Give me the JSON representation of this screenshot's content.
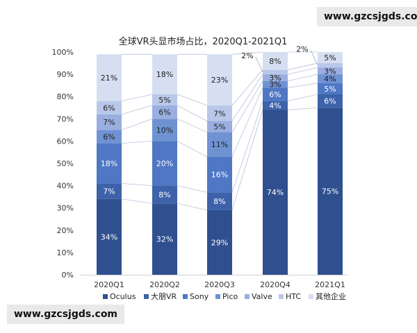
{
  "watermarks": {
    "top": "www.gzcsjgds.com",
    "bottom": "www.gzcsjgds.com"
  },
  "chart_data": {
    "type": "bar",
    "stacked": true,
    "title": "全球VR头显市场占比，2020Q1-2021Q1",
    "categories": [
      "2020Q1",
      "2020Q2",
      "2020Q3",
      "2020Q4",
      "2021Q1"
    ],
    "y_ticks": [
      "0%",
      "10%",
      "20%",
      "30%",
      "40%",
      "50%",
      "60%",
      "70%",
      "80%",
      "90%",
      "100%"
    ],
    "ylim": [
      0,
      100
    ],
    "grid": false,
    "legend_position": "bottom",
    "series": [
      {
        "name": "Oculus",
        "color": "#2f4f8f",
        "values": [
          34,
          32,
          29,
          74,
          75
        ],
        "labels": [
          "34%",
          "32%",
          "29%",
          "74%",
          "75%"
        ]
      },
      {
        "name": "大朋VR",
        "color": "#3d62aa",
        "values": [
          7,
          8,
          8,
          4,
          6
        ],
        "labels": [
          "7%",
          "8%",
          "8%",
          "4%",
          "6%"
        ]
      },
      {
        "name": "Sony",
        "color": "#4f77c4",
        "values": [
          18,
          20,
          16,
          6,
          5
        ],
        "labels": [
          "18%",
          "20%",
          "16%",
          "6%",
          "5%"
        ]
      },
      {
        "name": "Pico",
        "color": "#6f92d3",
        "values": [
          6,
          10,
          11,
          3,
          4
        ],
        "labels": [
          "6%",
          "10%",
          "11%",
          "3%",
          "4%"
        ]
      },
      {
        "name": "Valve",
        "color": "#9aaee0",
        "values": [
          7,
          6,
          5,
          3,
          3
        ],
        "labels": [
          "7%",
          "6%",
          "5%",
          "3%",
          "3%"
        ]
      },
      {
        "name": "HTC",
        "color": "#b9c7e9",
        "values": [
          6,
          5,
          7,
          2,
          2
        ],
        "labels": [
          "6%",
          "5%",
          "7%",
          "2%",
          "2%"
        ]
      },
      {
        "name": "其他企业",
        "color": "#d6def2",
        "values": [
          21,
          18,
          23,
          8,
          5
        ],
        "labels": [
          "21%",
          "18%",
          "23%",
          "8%",
          "5%"
        ]
      }
    ]
  }
}
